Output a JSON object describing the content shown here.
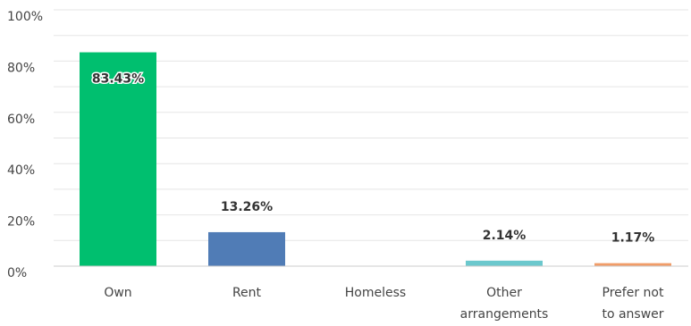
{
  "chart_data": {
    "type": "bar",
    "categories": [
      [
        "Own"
      ],
      [
        "Rent"
      ],
      [
        "Homeless"
      ],
      [
        "Other",
        "arrangements"
      ],
      [
        "Prefer not",
        "to answer"
      ]
    ],
    "values": [
      83.43,
      13.26,
      0,
      2.14,
      1.17
    ],
    "value_labels": [
      "83.43%",
      "13.26%",
      "",
      "2.14%",
      "1.17%"
    ],
    "colors": [
      "#00bf6f",
      "#507cb6",
      "#6bc8cd",
      "#6bc8cd",
      "#f19c68"
    ],
    "yticks": [
      "0%",
      "20%",
      "40%",
      "60%",
      "80%",
      "100%"
    ],
    "ylim": [
      0,
      100
    ],
    "grid": true,
    "title": "",
    "xlabel": "",
    "ylabel": ""
  }
}
